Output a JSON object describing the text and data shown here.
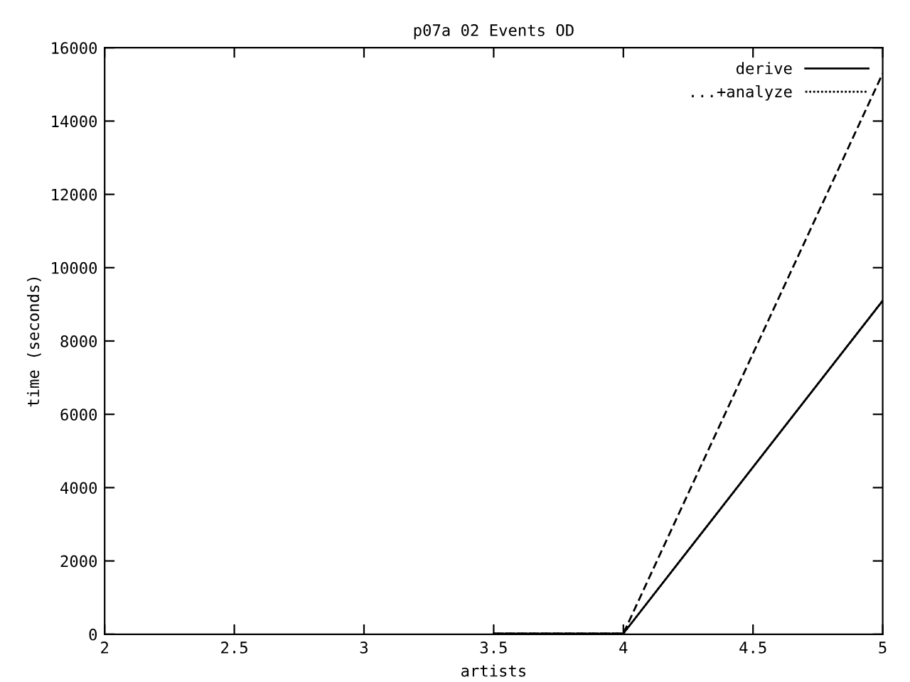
{
  "chart_data": {
    "type": "line",
    "title": "p07a 02 Events OD",
    "xlabel": "artists",
    "ylabel": "time (seconds)",
    "x": [
      3.5,
      4,
      5
    ],
    "series": [
      {
        "name": "derive",
        "color": "#000000",
        "values": [
          20,
          20,
          9100
        ],
        "line_style": "solid"
      },
      {
        "name": "...+analyze",
        "color": "#000000",
        "values": [
          20,
          20,
          9100
        ],
        "line_style": "dotted"
      },
      {
        "color": "#000000",
        "values": [
          20,
          20,
          15300
        ],
        "line_style": "dashed"
      }
    ],
    "xlim": [
      2,
      5
    ],
    "xticks": [
      2,
      2.5,
      3,
      3.5,
      4,
      4.5,
      5
    ],
    "ylim": [
      0,
      16000
    ],
    "yticks": [
      0,
      2000,
      4000,
      6000,
      8000,
      10000,
      12000,
      14000,
      16000
    ],
    "grid": false,
    "legend": "top right",
    "marker": "none"
  }
}
